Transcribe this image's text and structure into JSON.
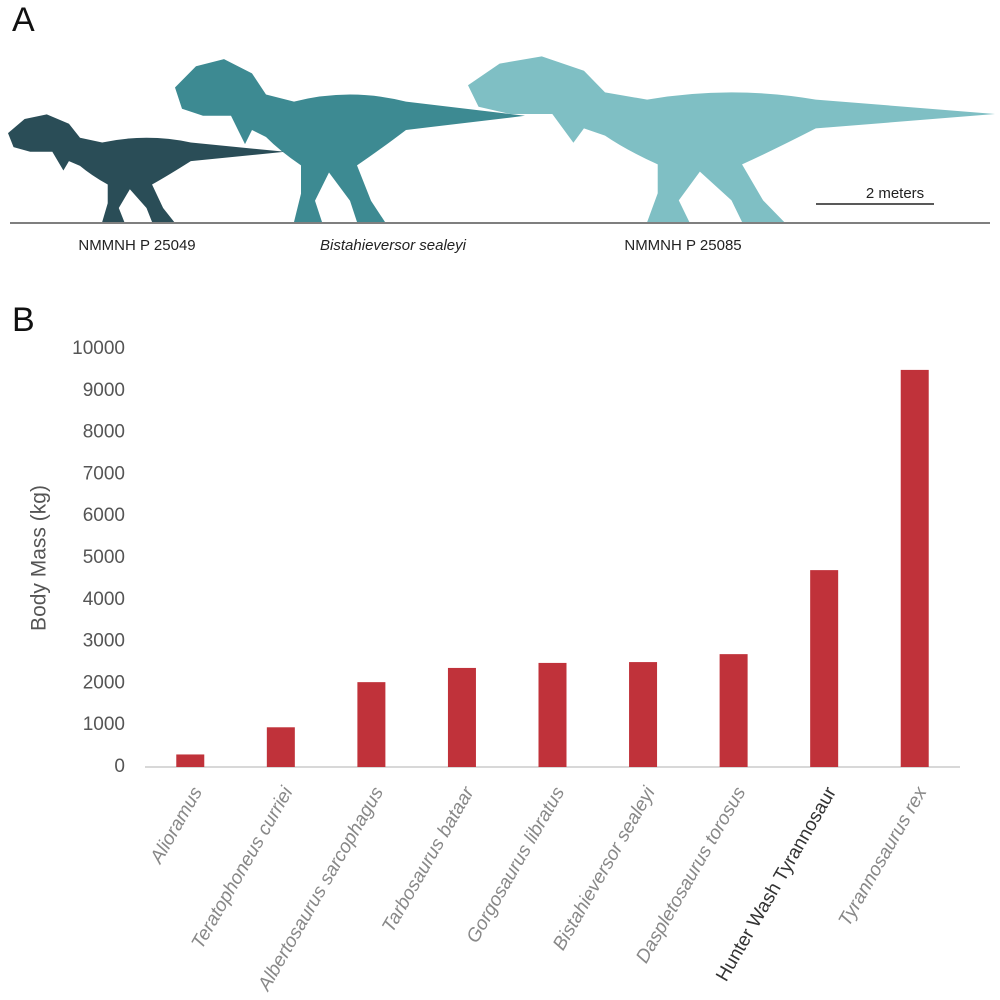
{
  "panel_a": {
    "label": "A",
    "specimens": [
      "NMMNH P 25049",
      "Bistahieversor sealeyi",
      "NMMNH P 25085"
    ],
    "scale_bar": "2 meters"
  },
  "panel_b": {
    "label": "B"
  },
  "chart_data": {
    "type": "bar",
    "ylabel": "Body Mass (kg)",
    "categories": [
      "Alioramus",
      "Teratophoneus curriei",
      "Albertosaurus sarcophagus",
      "Tarbosaurus bataar",
      "Gorgosaurus libratus",
      "Bistahieversor sealeyi",
      "Daspletosaurus torosus",
      "Hunter Wash Tyrannosaur",
      "Tyrannosaurus rex"
    ],
    "values": [
      300,
      950,
      2030,
      2370,
      2490,
      2510,
      2700,
      4710,
      9500
    ],
    "color": "#c0323a",
    "ylim": [
      0,
      10000
    ],
    "yticks": [
      0,
      1000,
      2000,
      3000,
      4000,
      5000,
      6000,
      7000,
      8000,
      9000,
      10000
    ],
    "grid": false
  }
}
